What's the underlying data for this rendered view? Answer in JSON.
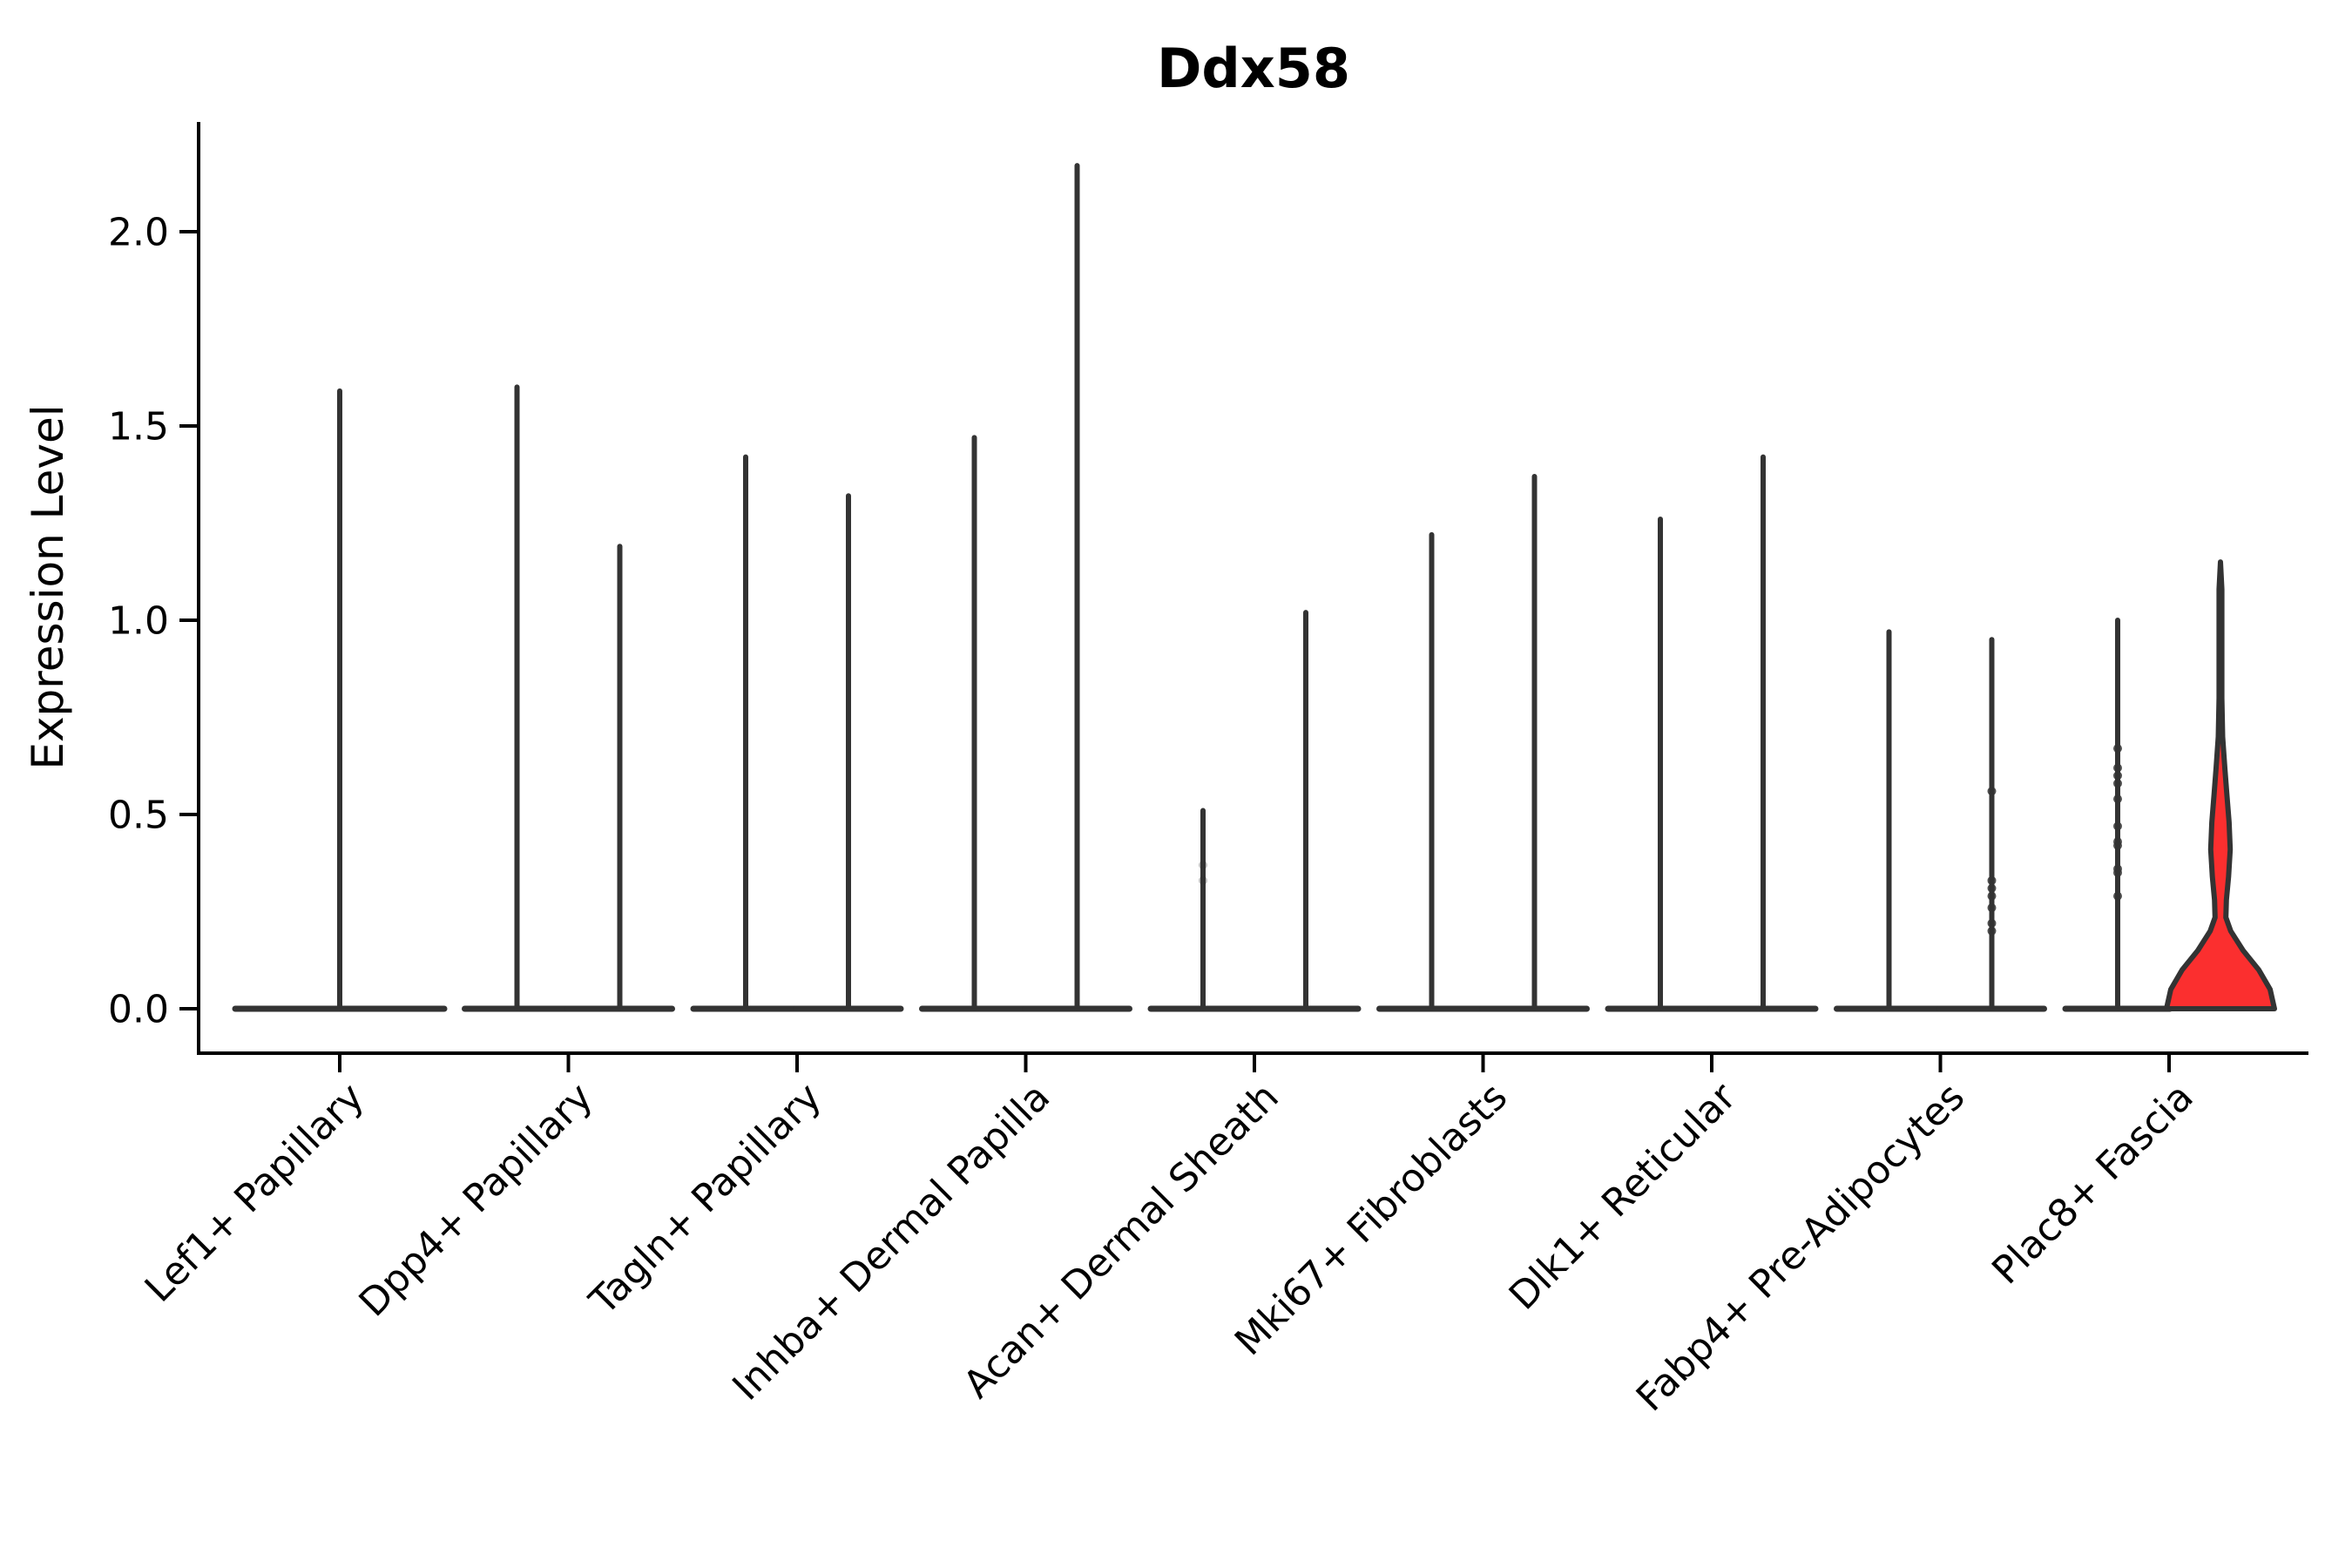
{
  "title": "Ddx58",
  "axes": {
    "ylabel": "Expression Level",
    "yticks": [
      "2.0",
      "1.5",
      "1.0",
      "0.5",
      "0.0"
    ],
    "ytick_values": [
      2.0,
      1.5,
      1.0,
      0.5,
      0.0
    ]
  },
  "chart_data": {
    "type": "violin",
    "title": "Ddx58",
    "xlabel": "",
    "ylabel": "Expression Level",
    "ylim": [
      -0.11,
      2.28
    ],
    "yticks": [
      0.0,
      0.5,
      1.0,
      1.5,
      2.0
    ],
    "x_tick_rotation": 45,
    "grid": false,
    "legend": "none",
    "categories": [
      "Lef1+ Papillary",
      "Dpp4+ Papillary",
      "Tagln+ Papillary",
      "Inhba+ Dermal Papilla",
      "Acan+ Dermal Sheath",
      "Mki67+ Fibroblasts",
      "Dlk1+ Reticular",
      "Fabp4+ Pre-Adipocytes",
      "Plac8+ Fascia"
    ],
    "colors": {
      "violin_stroke": "#333333",
      "highlight_fill": "#fb2f2f",
      "axis": "#000000",
      "background": "#ffffff"
    },
    "groups": [
      {
        "category": "Lef1+ Papillary",
        "violins": [
          {
            "max": 1.59,
            "fill": "none"
          }
        ]
      },
      {
        "category": "Dpp4+ Papillary",
        "violins": [
          {
            "max": 1.6,
            "fill": "none"
          },
          {
            "max": 1.19,
            "fill": "none"
          }
        ]
      },
      {
        "category": "Tagln+ Papillary",
        "violins": [
          {
            "max": 1.42,
            "fill": "none"
          },
          {
            "max": 1.32,
            "fill": "none"
          }
        ]
      },
      {
        "category": "Inhba+ Dermal Papilla",
        "violins": [
          {
            "max": 1.47,
            "fill": "none"
          },
          {
            "max": 2.17,
            "fill": "none"
          }
        ]
      },
      {
        "category": "Acan+ Dermal Sheath",
        "violins": [
          {
            "max": 0.51,
            "fill": "none",
            "jitter": [
              0.37,
              0.33
            ],
            "jitter_opacity": 0.3
          },
          {
            "max": 1.02,
            "fill": "none"
          }
        ]
      },
      {
        "category": "Mki67+ Fibroblasts",
        "violins": [
          {
            "max": 1.22,
            "fill": "none"
          },
          {
            "max": 1.37,
            "fill": "none"
          }
        ]
      },
      {
        "category": "Dlk1+ Reticular",
        "violins": [
          {
            "max": 1.26,
            "fill": "none"
          },
          {
            "max": 1.42,
            "fill": "none"
          }
        ]
      },
      {
        "category": "Fabp4+ Pre-Adipocytes",
        "violins": [
          {
            "max": 0.97,
            "fill": "none"
          },
          {
            "max": 0.95,
            "fill": "none",
            "jitter": [
              0.56,
              0.33,
              0.31,
              0.29,
              0.26,
              0.22,
              0.2
            ],
            "jitter_opacity": 0.85
          }
        ]
      },
      {
        "category": "Plac8+ Fascia",
        "violins": [
          {
            "max": 1.0,
            "fill": "none",
            "jitter": [
              0.67,
              0.62,
              0.6,
              0.58,
              0.54,
              0.47,
              0.43,
              0.42,
              0.36,
              0.35,
              0.29
            ],
            "jitter_opacity": 0.85
          },
          {
            "max": 1.15,
            "fill": "#fb2f2f",
            "profile": [
              [
                0.0,
                1.0
              ],
              [
                0.05,
                0.92
              ],
              [
                0.1,
                0.71
              ],
              [
                0.15,
                0.42
              ],
              [
                0.2,
                0.19
              ],
              [
                0.235,
                0.1
              ],
              [
                0.28,
                0.11
              ],
              [
                0.34,
                0.15
              ],
              [
                0.41,
                0.18
              ],
              [
                0.48,
                0.16
              ],
              [
                0.55,
                0.12
              ],
              [
                0.62,
                0.08
              ],
              [
                0.7,
                0.04
              ],
              [
                0.8,
                0.025
              ],
              [
                0.95,
                0.025
              ],
              [
                1.08,
                0.025
              ],
              [
                1.15,
                0.0
              ]
            ]
          }
        ]
      }
    ]
  }
}
